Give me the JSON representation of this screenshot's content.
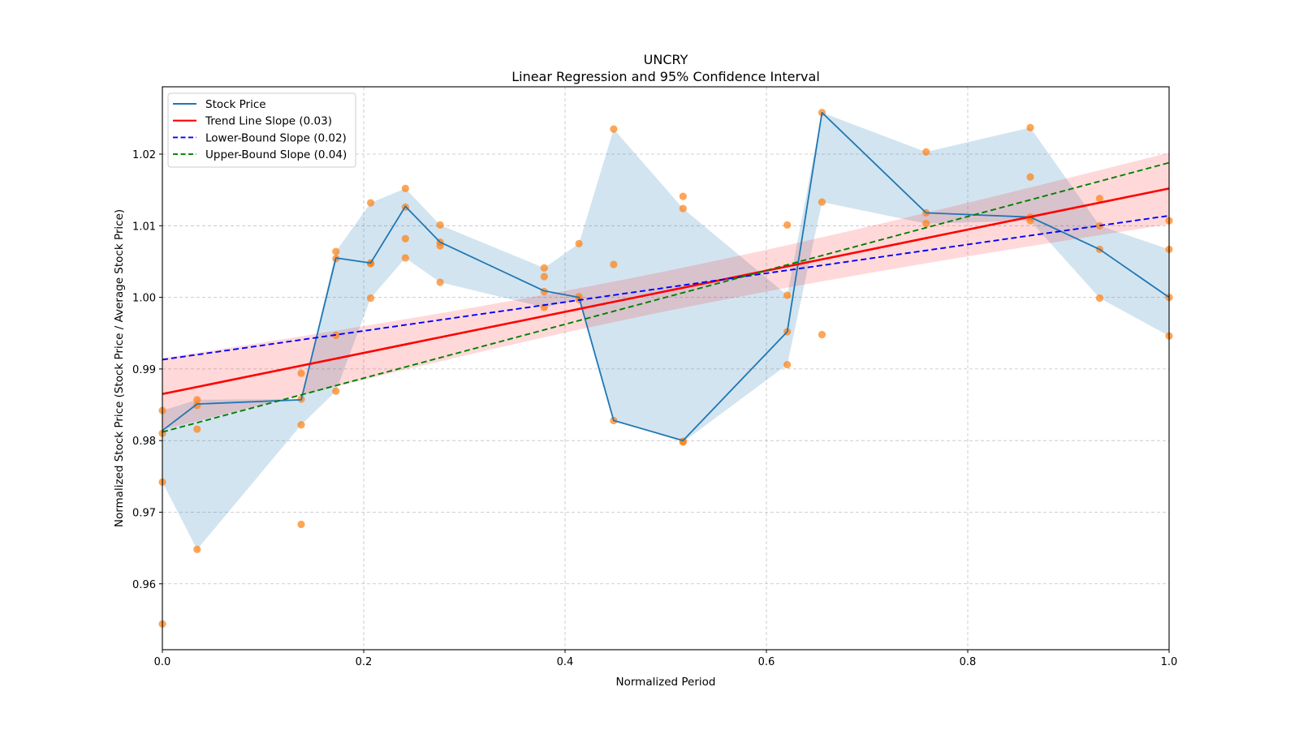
{
  "chart_data": {
    "type": "line",
    "title": "UNCRY",
    "subtitle": "Linear Regression and 95% Confidence Interval",
    "xlabel": "Normalized Period",
    "ylabel": "Normalized Stock Price (Stock Price / Average Stock Price)",
    "xlim": [
      0.0,
      1.0
    ],
    "ylim": [
      0.9508,
      1.0294
    ],
    "grid": true,
    "legend_position": "top-left",
    "x_ticks": [
      "0.0",
      "0.2",
      "0.4",
      "0.6",
      "0.8",
      "1.0"
    ],
    "x_tick_values": [
      0.0,
      0.2,
      0.4,
      0.6,
      0.8,
      1.0
    ],
    "y_ticks": [
      "0.96",
      "0.97",
      "0.98",
      "0.99",
      "1.00",
      "1.01",
      "1.02"
    ],
    "y_tick_values": [
      0.96,
      0.97,
      0.98,
      0.99,
      1.0,
      1.01,
      1.02
    ],
    "legend": [
      {
        "label": "Stock Price",
        "color": "#1f77b4",
        "style": "solid"
      },
      {
        "label": "Trend Line Slope (0.03)",
        "color": "#ff0000",
        "style": "solid"
      },
      {
        "label": "Lower-Bound Slope (0.02)",
        "color": "#0000ff",
        "style": "dashed"
      },
      {
        "label": "Upper-Bound Slope (0.04)",
        "color": "#008000",
        "style": "dashed"
      }
    ],
    "stock_price": {
      "name": "Stock Price",
      "color": "#1f77b4",
      "x": [
        0.0,
        0.0345,
        0.1379,
        0.1724,
        0.2069,
        0.2414,
        0.2759,
        0.3793,
        0.4138,
        0.4483,
        0.5172,
        0.6207,
        0.6552,
        0.7586,
        0.8621,
        0.931,
        1.0
      ],
      "y": [
        0.9814,
        0.9851,
        0.9857,
        1.0055,
        1.0048,
        1.0127,
        1.0077,
        1.0009,
        1.0,
        0.9828,
        0.98,
        0.9952,
        1.0258,
        1.0118,
        1.0112,
        1.0067,
        1.0
      ],
      "band_upper": [
        0.9842,
        0.9857,
        0.9858,
        1.0064,
        1.0132,
        1.0152,
        1.0101,
        1.0041,
        1.0075,
        1.0235,
        1.0124,
        1.0003,
        1.0258,
        1.0203,
        1.0237,
        1.01,
        1.0067
      ],
      "band_lower": [
        0.9742,
        0.9648,
        0.9822,
        0.9869,
        0.9999,
        1.0055,
        1.0021,
        0.9986,
        0.9997,
        0.9828,
        0.9798,
        0.9906,
        1.0133,
        1.0103,
        1.0107,
        0.9999,
        0.9946
      ],
      "band_color": "#1f77b4"
    },
    "scatter": {
      "color": "#ff7f0e",
      "points": [
        [
          0.0,
          0.9842
        ],
        [
          0.0,
          0.981
        ],
        [
          0.0,
          0.9742
        ],
        [
          0.0,
          0.9544
        ],
        [
          0.0345,
          0.9857
        ],
        [
          0.0345,
          0.9849
        ],
        [
          0.0345,
          0.9816
        ],
        [
          0.0345,
          0.9648
        ],
        [
          0.1379,
          0.9894
        ],
        [
          0.1379,
          0.9858
        ],
        [
          0.1379,
          0.9822
        ],
        [
          0.1379,
          0.9683
        ],
        [
          0.1724,
          1.0064
        ],
        [
          0.1724,
          1.0054
        ],
        [
          0.1724,
          0.9947
        ],
        [
          0.1724,
          0.9869
        ],
        [
          0.2069,
          1.0132
        ],
        [
          0.2069,
          1.0048
        ],
        [
          0.2069,
          1.0047
        ],
        [
          0.2069,
          0.9999
        ],
        [
          0.2414,
          1.0152
        ],
        [
          0.2414,
          1.0126
        ],
        [
          0.2414,
          1.0082
        ],
        [
          0.2414,
          1.0055
        ],
        [
          0.2759,
          1.0101
        ],
        [
          0.2759,
          1.0077
        ],
        [
          0.2759,
          1.0072
        ],
        [
          0.2759,
          1.0021
        ],
        [
          0.3793,
          1.0041
        ],
        [
          0.3793,
          1.0029
        ],
        [
          0.3793,
          1.0008
        ],
        [
          0.3793,
          0.9986
        ],
        [
          0.4138,
          1.0075
        ],
        [
          0.4138,
          1.0001
        ],
        [
          0.4138,
          0.9997
        ],
        [
          0.4483,
          1.0235
        ],
        [
          0.4483,
          1.0046
        ],
        [
          0.4483,
          0.9828
        ],
        [
          0.5172,
          1.0141
        ],
        [
          0.5172,
          1.0124
        ],
        [
          0.5172,
          0.9799
        ],
        [
          0.5172,
          0.9798
        ],
        [
          0.6207,
          1.0101
        ],
        [
          0.6207,
          1.0003
        ],
        [
          0.6207,
          0.9952
        ],
        [
          0.6207,
          0.9906
        ],
        [
          0.6552,
          1.0258
        ],
        [
          0.6552,
          1.0133
        ],
        [
          0.6552,
          0.9948
        ],
        [
          0.7586,
          1.0203
        ],
        [
          0.7586,
          1.0118
        ],
        [
          0.7586,
          1.0103
        ],
        [
          0.8621,
          1.0237
        ],
        [
          0.8621,
          1.0168
        ],
        [
          0.8621,
          1.0112
        ],
        [
          0.8621,
          1.0107
        ],
        [
          0.931,
          1.0138
        ],
        [
          0.931,
          1.01
        ],
        [
          0.931,
          1.0067
        ],
        [
          0.931,
          0.9999
        ],
        [
          1.0,
          1.0107
        ],
        [
          1.0,
          1.0067
        ],
        [
          1.0,
          1.0
        ],
        [
          1.0,
          0.9946
        ]
      ]
    },
    "trend_line": {
      "name": "Trend Line Slope (0.03)",
      "color": "#ff0000",
      "y_start": 0.9865,
      "y_end": 1.0152,
      "ci_half_width_center": 0.0028,
      "ci_half_width_end": 0.005,
      "ci_color": "#ff0000"
    },
    "lower_bound_line": {
      "name": "Lower-Bound Slope (0.02)",
      "color": "#0000ff",
      "y_start": 0.9913,
      "y_end": 1.0114
    },
    "upper_bound_line": {
      "name": "Upper-Bound Slope (0.04)",
      "color": "#008000",
      "y_start": 0.9812,
      "y_end": 1.0188
    }
  }
}
